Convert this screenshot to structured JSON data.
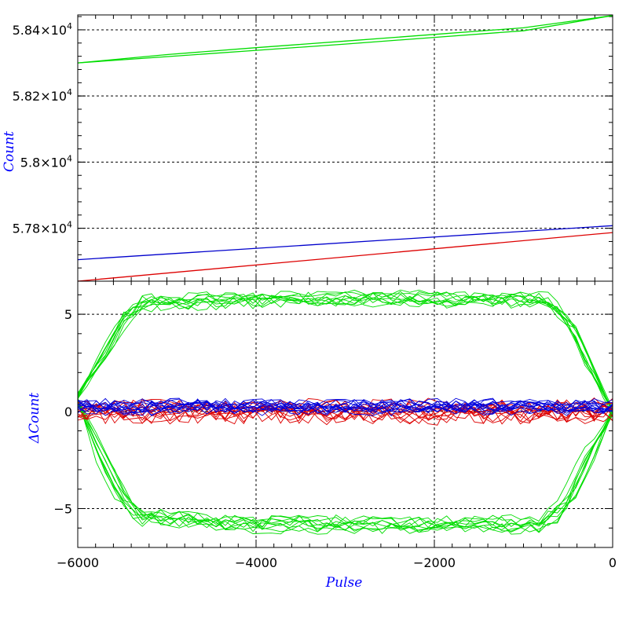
{
  "chart_data": [
    {
      "type": "line",
      "panel": "top",
      "xlim": [
        -6000,
        0
      ],
      "ylim": [
        57640,
        58445
      ],
      "ylabel": "Count",
      "ylabel_color": "#0000ff",
      "yticks": [
        {
          "value": 57800,
          "mantissa": "5.78",
          "exp": "4"
        },
        {
          "value": 58000,
          "mantissa": "5.8",
          "exp": "4"
        },
        {
          "value": 58200,
          "mantissa": "5.82",
          "exp": "4"
        },
        {
          "value": 58400,
          "mantissa": "5.84",
          "exp": "4"
        }
      ],
      "grid": true,
      "series": [
        {
          "color": "#00dd00",
          "x": [
            -6000,
            -5000,
            -4000,
            -3000,
            -2000,
            -1000,
            0
          ],
          "y": [
            58300,
            58319,
            58338,
            58357,
            58377,
            58397,
            58443
          ]
        },
        {
          "color": "#00dd00",
          "x": [
            -6000,
            -5000,
            -4000,
            -3000,
            -2000,
            -1000,
            0
          ],
          "y": [
            58300,
            58325,
            58346,
            58366,
            58386,
            58406,
            58443
          ]
        },
        {
          "color": "#0000cc",
          "x": [
            -6000,
            0
          ],
          "y": [
            57705,
            57808
          ]
        },
        {
          "color": "#dd0000",
          "x": [
            -6000,
            0
          ],
          "y": [
            57640,
            57787
          ]
        }
      ]
    },
    {
      "type": "line",
      "panel": "bottom",
      "xlim": [
        -6000,
        0
      ],
      "ylim": [
        -7,
        6.7
      ],
      "xlabel": "Pulse",
      "ylabel": "ΔCount",
      "label_color": "#0000ff",
      "xticks": [
        "−6000",
        "−4000",
        "−2000",
        "0"
      ],
      "yticks": [
        "−5",
        "0",
        "5"
      ],
      "grid": true,
      "groups": [
        {
          "color": "#00dd00",
          "shape": "upper",
          "count": 10,
          "level": 5.8,
          "noise": 0.35,
          "x": [
            -6000,
            -5700,
            -5500,
            -5300,
            -4000,
            -2000,
            -800,
            -500,
            -300,
            0
          ],
          "y": [
            0.8,
            3.2,
            5.0,
            5.6,
            5.8,
            5.8,
            5.8,
            4.5,
            2.5,
            0
          ]
        },
        {
          "color": "#00dd00",
          "shape": "lower",
          "count": 10,
          "level": -5.8,
          "noise": 0.35,
          "x": [
            -6000,
            -5700,
            -5500,
            -5300,
            -4000,
            -2000,
            -800,
            -500,
            -300,
            0
          ],
          "y": [
            0.5,
            -2.8,
            -4.5,
            -5.4,
            -5.8,
            -5.8,
            -5.8,
            -4.5,
            -2.5,
            0
          ]
        },
        {
          "color": "#dd0000",
          "shape": "flat",
          "count": 12,
          "level": 0.0,
          "noise": 0.45,
          "x": [
            -6000,
            0
          ],
          "y": [
            0,
            0
          ]
        },
        {
          "color": "#0000dd",
          "shape": "flat",
          "count": 12,
          "level": 0.2,
          "noise": 0.3,
          "x": [
            -6000,
            0
          ],
          "y": [
            0.2,
            0.2
          ]
        }
      ]
    }
  ]
}
